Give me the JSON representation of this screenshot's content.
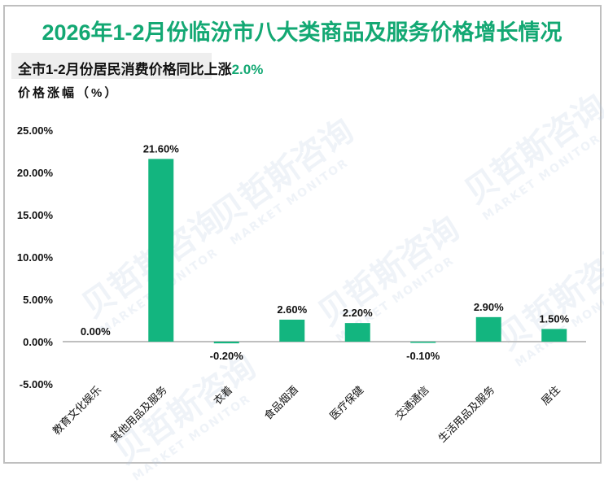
{
  "title": "2026年1-2月份临汾市八大类商品及服务价格增长情况",
  "subtitle": {
    "prefix": "全市1-2月份居民消费价格同比上涨",
    "highlight": "2.0%"
  },
  "y_axis_title": "价格涨幅（%）",
  "watermark": {
    "cn": "贝哲斯咨询",
    "en": "MARKET MONITOR"
  },
  "colors": {
    "accent": "#13a873",
    "bar": "#13b57f",
    "axis": "#bfbfbf",
    "border": "#bfbfbf"
  },
  "chart_data": {
    "type": "bar",
    "title": "2026年1-2月份临汾市八大类商品及服务价格增长情况",
    "subtitle": "全市1-2月份居民消费价格同比上涨2.0%",
    "xlabel": "",
    "ylabel": "价格涨幅（%）",
    "ylim": [
      -5,
      25
    ],
    "yticks": [
      25,
      20,
      15,
      10,
      5,
      0,
      -5
    ],
    "ytick_labels": [
      "25.00%",
      "20.00%",
      "15.00%",
      "10.00%",
      "5.00%",
      "0.00%",
      "-5.00%"
    ],
    "grid": false,
    "legend": null,
    "categories": [
      "教育文化娱乐",
      "其他用品及服务",
      "衣着",
      "食品烟酒",
      "医疗保健",
      "交通通信",
      "生活用品及服务",
      "居住"
    ],
    "values": [
      0.0,
      21.6,
      -0.2,
      2.6,
      2.2,
      -0.1,
      2.9,
      1.5
    ],
    "value_labels": [
      "0.00%",
      "21.60%",
      "-0.20%",
      "2.60%",
      "2.20%",
      "-0.10%",
      "2.90%",
      "1.50%"
    ]
  }
}
